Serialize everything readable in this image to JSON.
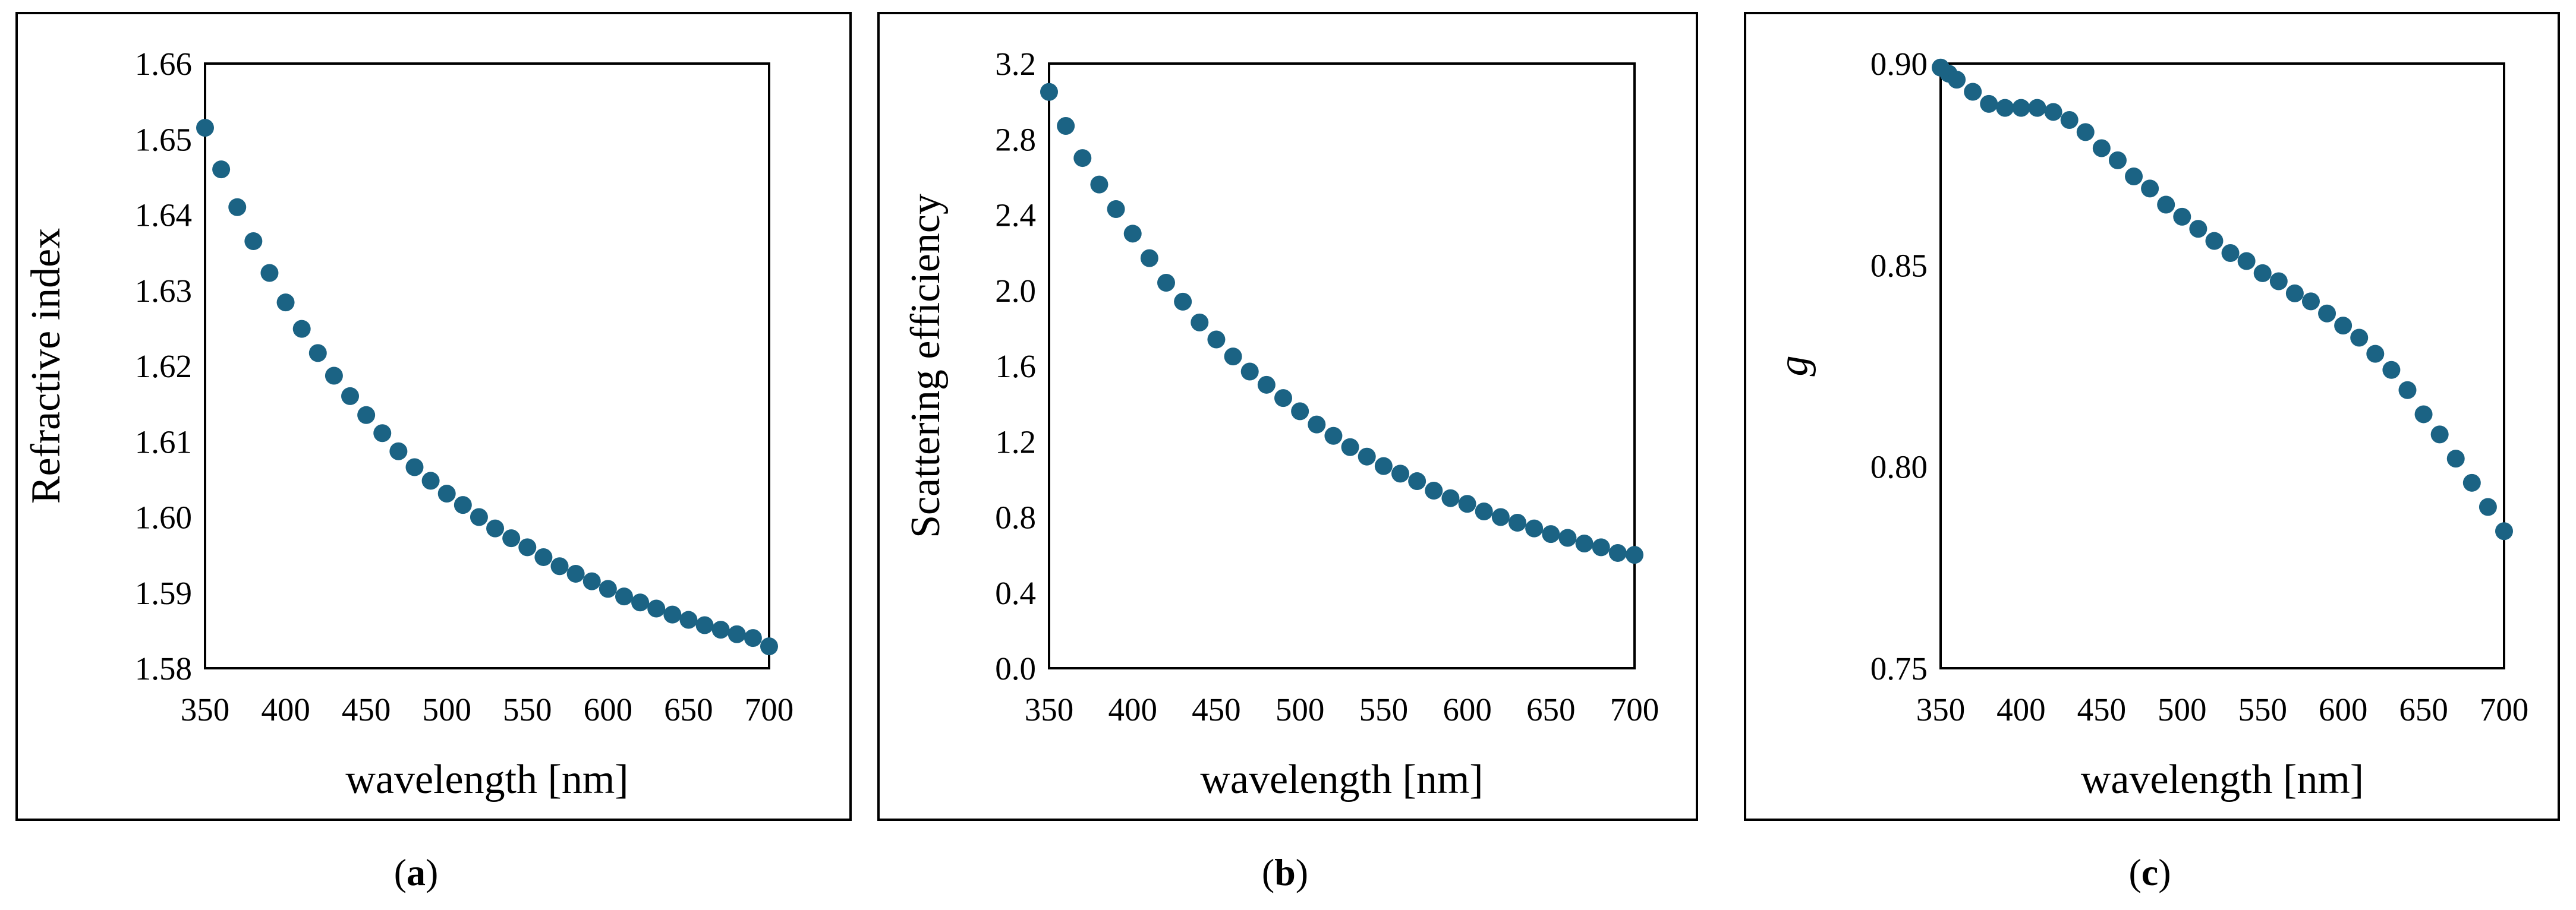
{
  "figure": {
    "marker_color": "#1b6384",
    "panels": [
      {
        "caption_open": "(",
        "caption_letter": "a",
        "caption_close": ")"
      },
      {
        "caption_open": "(",
        "caption_letter": "b",
        "caption_close": ")"
      },
      {
        "caption_open": "(",
        "caption_letter": "c",
        "caption_close": ")"
      }
    ]
  },
  "chart_data": [
    {
      "type": "scatter",
      "title": "",
      "xlabel": "wavelength [nm]",
      "ylabel": "Refractive index",
      "ylabel_italic": false,
      "xlim": [
        350,
        700
      ],
      "ylim": [
        1.58,
        1.66
      ],
      "xticks": [
        350,
        400,
        450,
        500,
        550,
        600,
        650,
        700
      ],
      "xtick_labels": [
        "350",
        "400",
        "450",
        "500",
        "550",
        "600",
        "650",
        "700"
      ],
      "yticks": [
        1.58,
        1.59,
        1.6,
        1.61,
        1.62,
        1.63,
        1.64,
        1.65,
        1.66
      ],
      "ytick_labels": [
        "1.58",
        "1.59",
        "1.60",
        "1.61",
        "1.62",
        "1.63",
        "1.64",
        "1.65",
        "1.66"
      ],
      "x": [
        350,
        360,
        370,
        380,
        390,
        400,
        410,
        420,
        430,
        440,
        450,
        460,
        470,
        480,
        490,
        500,
        510,
        520,
        530,
        540,
        550,
        560,
        570,
        580,
        590,
        600,
        610,
        620,
        630,
        640,
        650,
        660,
        670,
        680,
        690,
        700
      ],
      "y": [
        1.6515,
        1.646,
        1.641,
        1.6365,
        1.6323,
        1.6284,
        1.6249,
        1.6217,
        1.6187,
        1.616,
        1.6135,
        1.6111,
        1.6087,
        1.6066,
        1.6048,
        1.6031,
        1.6016,
        1.6,
        1.5985,
        1.5972,
        1.596,
        1.5947,
        1.5935,
        1.5925,
        1.5915,
        1.5905,
        1.5895,
        1.5887,
        1.5879,
        1.5871,
        1.5864,
        1.5857,
        1.5851,
        1.5845,
        1.584,
        1.5829
      ]
    },
    {
      "type": "scatter",
      "title": "",
      "xlabel": "wavelength [nm]",
      "ylabel": "Scattering efficiency",
      "ylabel_italic": false,
      "xlim": [
        350,
        700
      ],
      "ylim": [
        0.0,
        3.2
      ],
      "xticks": [
        350,
        400,
        450,
        500,
        550,
        600,
        650,
        700
      ],
      "xtick_labels": [
        "350",
        "400",
        "450",
        "500",
        "550",
        "600",
        "650",
        "700"
      ],
      "yticks": [
        0.0,
        0.4,
        0.8,
        1.2,
        1.6,
        2.0,
        2.4,
        2.8,
        3.2
      ],
      "ytick_labels": [
        "0.0",
        "0.4",
        "0.8",
        "1.2",
        "1.6",
        "2.0",
        "2.4",
        "2.8",
        "3.2"
      ],
      "x": [
        350,
        360,
        370,
        380,
        390,
        400,
        410,
        420,
        430,
        440,
        450,
        460,
        470,
        480,
        490,
        500,
        510,
        520,
        530,
        540,
        550,
        560,
        570,
        580,
        590,
        600,
        610,
        620,
        630,
        640,
        650,
        660,
        670,
        680,
        690,
        700
      ],
      "y": [
        3.05,
        2.87,
        2.7,
        2.56,
        2.43,
        2.3,
        2.17,
        2.04,
        1.94,
        1.83,
        1.74,
        1.65,
        1.57,
        1.5,
        1.43,
        1.36,
        1.29,
        1.23,
        1.17,
        1.12,
        1.07,
        1.03,
        0.99,
        0.94,
        0.9,
        0.87,
        0.83,
        0.8,
        0.77,
        0.74,
        0.71,
        0.69,
        0.66,
        0.64,
        0.61,
        0.6
      ]
    },
    {
      "type": "scatter",
      "title": "",
      "xlabel": "wavelength [nm]",
      "ylabel": "g",
      "ylabel_italic": true,
      "xlim": [
        350,
        700
      ],
      "ylim": [
        0.75,
        0.9
      ],
      "xticks": [
        350,
        400,
        450,
        500,
        550,
        600,
        650,
        700
      ],
      "xtick_labels": [
        "350",
        "400",
        "450",
        "500",
        "550",
        "600",
        "650",
        "700"
      ],
      "yticks": [
        0.75,
        0.8,
        0.85,
        0.9
      ],
      "ytick_labels": [
        "0.75",
        "0.80",
        "0.85",
        "0.90"
      ],
      "x": [
        350,
        355,
        360,
        370,
        380,
        390,
        400,
        410,
        420,
        430,
        440,
        450,
        460,
        470,
        480,
        490,
        500,
        510,
        520,
        530,
        540,
        550,
        560,
        570,
        580,
        590,
        600,
        610,
        620,
        630,
        640,
        650,
        660,
        670,
        680,
        690,
        700
      ],
      "y": [
        0.899,
        0.8975,
        0.896,
        0.893,
        0.89,
        0.889,
        0.889,
        0.889,
        0.888,
        0.886,
        0.883,
        0.879,
        0.876,
        0.872,
        0.869,
        0.865,
        0.862,
        0.859,
        0.856,
        0.853,
        0.851,
        0.848,
        0.846,
        0.843,
        0.841,
        0.838,
        0.835,
        0.832,
        0.828,
        0.824,
        0.819,
        0.813,
        0.808,
        0.802,
        0.796,
        0.79,
        0.784
      ]
    }
  ]
}
